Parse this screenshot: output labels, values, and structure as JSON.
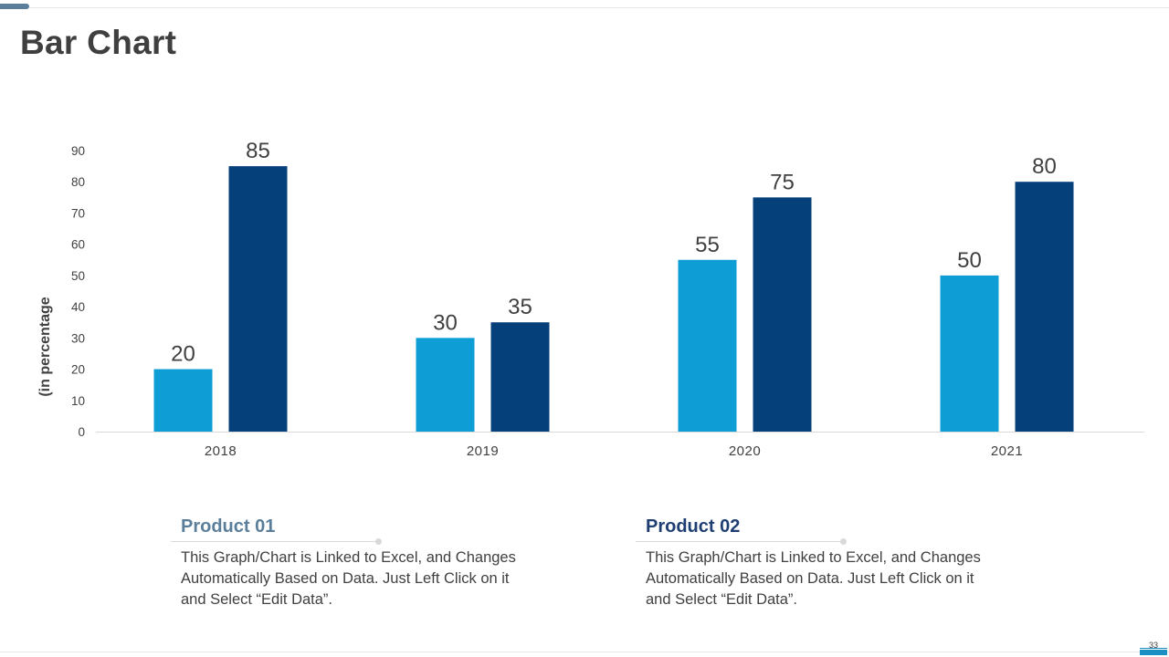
{
  "slide": {
    "title": "Bar Chart",
    "page_number": "33"
  },
  "colors": {
    "product1": "#0f9dd5",
    "product2": "#05407a",
    "axis_text": "#404040"
  },
  "chart_data": {
    "type": "bar",
    "categories": [
      "2018",
      "2019",
      "2020",
      "2021"
    ],
    "series": [
      {
        "name": "Product 01",
        "values": [
          20,
          30,
          55,
          50
        ]
      },
      {
        "name": "Product 02",
        "values": [
          85,
          35,
          75,
          80
        ]
      }
    ],
    "ylabel": "(in percentage",
    "ylim": [
      0,
      90
    ],
    "yticks": [
      0,
      10,
      20,
      30,
      40,
      50,
      60,
      70,
      80,
      90
    ],
    "grid": false
  },
  "products": [
    {
      "name": "Product 01",
      "description": "This Graph/Chart is Linked to Excel, and Changes Automatically Based on Data. Just Left Click on it and Select “Edit Data”."
    },
    {
      "name": "Product 02",
      "description": "This Graph/Chart is Linked to Excel, and Changes Automatically Based on Data. Just Left Click on it and Select “Edit Data”."
    }
  ]
}
